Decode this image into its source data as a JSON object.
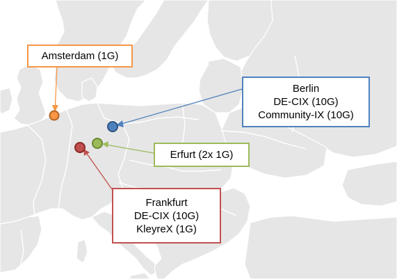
{
  "colors": {
    "sea": "#ffffff",
    "land": "#e6e6e6",
    "border": "#ffffff",
    "orange": "#f79646",
    "blue": "#4f81bd",
    "green": "#9bbb59",
    "red": "#c0504d"
  },
  "locations": [
    {
      "id": "amsterdam",
      "color_key": "orange",
      "lines": [
        "Amsterdam (1G)"
      ]
    },
    {
      "id": "berlin",
      "color_key": "blue",
      "lines": [
        "Berlin",
        "DE-CIX (10G)",
        "Community-IX (10G)"
      ]
    },
    {
      "id": "erfurt",
      "color_key": "green",
      "lines": [
        "Erfurt (2x 1G)"
      ]
    },
    {
      "id": "frankfurt",
      "color_key": "red",
      "lines": [
        "Frankfurt",
        "DE-CIX (10G)",
        "KleyreX (1G)"
      ]
    }
  ]
}
